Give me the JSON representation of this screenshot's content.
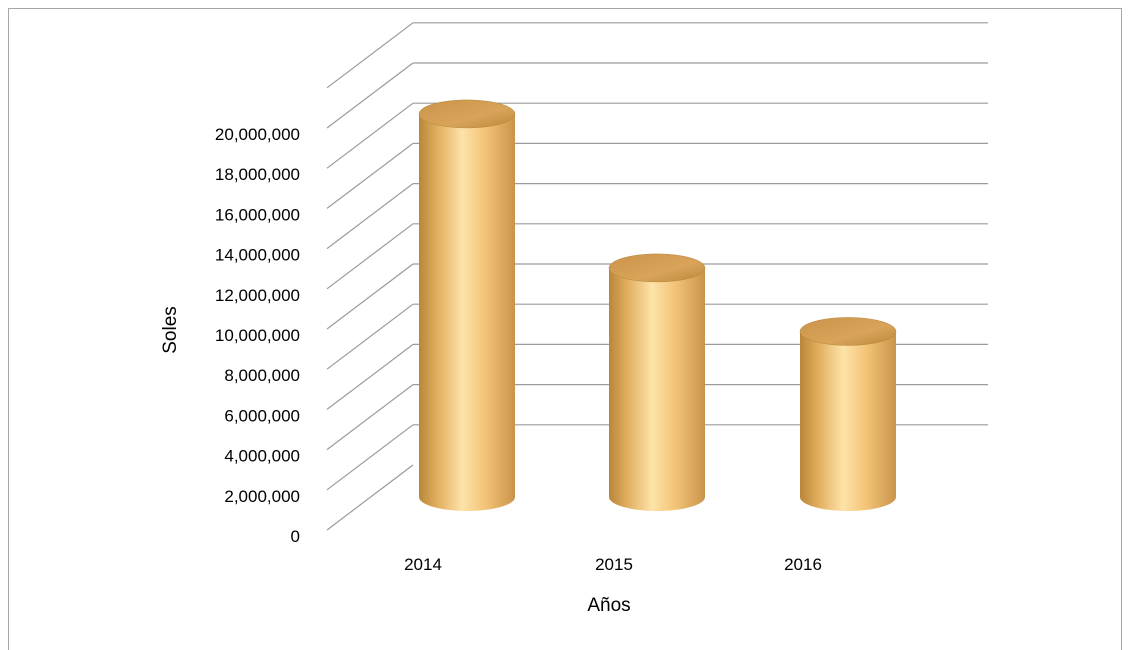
{
  "chart_data": {
    "type": "bar",
    "style": "3d-cylinder",
    "categories": [
      "2014",
      "2015",
      "2016"
    ],
    "values": [
      19900000,
      11900000,
      8600000
    ],
    "title": "",
    "xlabel": "Años",
    "ylabel": "Soles",
    "ylim": [
      0,
      20000000
    ],
    "yticks": [
      "0",
      "2,000,000",
      "4,000,000",
      "6,000,000",
      "8,000,000",
      "10,000,000",
      "12,000,000",
      "14,000,000",
      "16,000,000",
      "18,000,000",
      "20,000,000"
    ],
    "grid": true,
    "legend": "none",
    "colors": {
      "bar": "#f2c275",
      "bar_dark": "#b8873a",
      "bar_light": "#fde3a8",
      "grid": "#9b9b9b"
    }
  }
}
